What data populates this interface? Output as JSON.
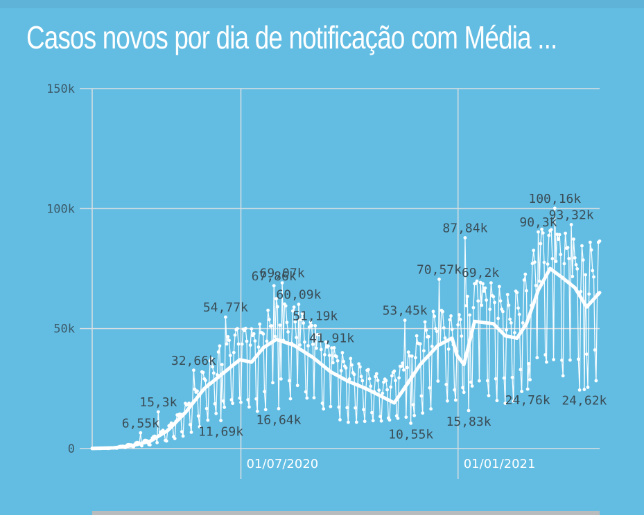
{
  "title": "Casos novos por dia de notificação com Média ...",
  "colors": {
    "background": "#63bde3",
    "line": "#ffffff",
    "grid": "#d9dee1",
    "text": "#3c5a69"
  },
  "chart_data": {
    "type": "line",
    "title": "Casos novos por dia de notificação com Média ...",
    "xlabel": "",
    "ylabel": "",
    "x_range": [
      "2020-02-26",
      "2021-05-01"
    ],
    "ylim": [
      0,
      150000
    ],
    "y_ticks": [
      {
        "value": 0,
        "label": "0"
      },
      {
        "value": 50000,
        "label": "50k"
      },
      {
        "value": 100000,
        "label": "100k"
      },
      {
        "value": 150000,
        "label": "150k"
      }
    ],
    "x_ticks": [
      {
        "date": "2020-07-01",
        "label": "01/07/2020"
      },
      {
        "date": "2021-01-01",
        "label": "01/01/2021"
      }
    ],
    "grid": true,
    "legend": "none",
    "series": [],
    "daily_cases_approx": [
      [
        "2020-02-26",
        0
      ],
      [
        "2020-03-15",
        200
      ],
      [
        "2020-03-31",
        1500
      ],
      [
        "2020-04-15",
        3000
      ],
      [
        "2020-04-30",
        7000
      ],
      [
        "2020-05-15",
        14000
      ],
      [
        "2020-05-31",
        25000
      ],
      [
        "2020-06-15",
        33000
      ],
      [
        "2020-06-30",
        40000
      ],
      [
        "2020-07-15",
        38000
      ],
      [
        "2020-07-31",
        46000
      ],
      [
        "2020-08-15",
        44000
      ],
      [
        "2020-08-31",
        40000
      ],
      [
        "2020-09-15",
        33000
      ],
      [
        "2020-09-30",
        28000
      ],
      [
        "2020-10-15",
        25000
      ],
      [
        "2020-10-31",
        22000
      ],
      [
        "2020-11-15",
        28000
      ],
      [
        "2020-11-30",
        37000
      ],
      [
        "2020-12-15",
        44000
      ],
      [
        "2020-12-31",
        40000
      ],
      [
        "2021-01-15",
        55000
      ],
      [
        "2021-01-31",
        52000
      ],
      [
        "2021-02-15",
        46000
      ],
      [
        "2021-02-28",
        55000
      ],
      [
        "2021-03-15",
        72000
      ],
      [
        "2021-03-31",
        70000
      ],
      [
        "2021-04-15",
        62000
      ],
      [
        "2021-05-01",
        65000
      ]
    ],
    "moving_average_approx": [
      [
        "2020-02-26",
        100
      ],
      [
        "2020-03-15",
        300
      ],
      [
        "2020-03-31",
        1200
      ],
      [
        "2020-04-15",
        3000
      ],
      [
        "2020-04-30",
        7500
      ],
      [
        "2020-05-15",
        15000
      ],
      [
        "2020-05-31",
        25000
      ],
      [
        "2020-06-15",
        31000
      ],
      [
        "2020-06-30",
        37000
      ],
      [
        "2020-07-10",
        36000
      ],
      [
        "2020-07-20",
        42000
      ],
      [
        "2020-07-31",
        45500
      ],
      [
        "2020-08-15",
        43000
      ],
      [
        "2020-08-31",
        38000
      ],
      [
        "2020-09-15",
        32000
      ],
      [
        "2020-09-30",
        28000
      ],
      [
        "2020-10-15",
        25000
      ],
      [
        "2020-10-31",
        21000
      ],
      [
        "2020-11-08",
        19000
      ],
      [
        "2020-11-15",
        24000
      ],
      [
        "2020-11-30",
        35000
      ],
      [
        "2020-12-15",
        43000
      ],
      [
        "2020-12-27",
        46000
      ],
      [
        "2020-12-31",
        39000
      ],
      [
        "2021-01-06",
        35000
      ],
      [
        "2021-01-15",
        53000
      ],
      [
        "2021-01-31",
        52000
      ],
      [
        "2021-02-10",
        47000
      ],
      [
        "2021-02-20",
        46000
      ],
      [
        "2021-02-28",
        52000
      ],
      [
        "2021-03-10",
        66000
      ],
      [
        "2021-03-20",
        75000
      ],
      [
        "2021-03-31",
        71000
      ],
      [
        "2021-04-10",
        67000
      ],
      [
        "2021-04-20",
        59000
      ],
      [
        "2021-05-01",
        65000
      ]
    ],
    "annotations": [
      {
        "label": "6,55k",
        "date": "2020-04-07",
        "value": 6550
      },
      {
        "label": "15,3k",
        "date": "2020-04-22",
        "value": 15300
      },
      {
        "label": "32,66k",
        "date": "2020-05-22",
        "value": 32660
      },
      {
        "label": "11,69k",
        "date": "2020-06-14",
        "value": 11690
      },
      {
        "label": "54,77k",
        "date": "2020-06-18",
        "value": 54770
      },
      {
        "label": "67,86k",
        "date": "2020-07-29",
        "value": 67860
      },
      {
        "label": "16,64k",
        "date": "2020-08-02",
        "value": 16640
      },
      {
        "label": "69,07k",
        "date": "2020-08-05",
        "value": 69070
      },
      {
        "label": "60,09k",
        "date": "2020-08-19",
        "value": 60090
      },
      {
        "label": "51,19k",
        "date": "2020-09-02",
        "value": 51190
      },
      {
        "label": "41,91k",
        "date": "2020-09-16",
        "value": 41910
      },
      {
        "label": "53,45k",
        "date": "2020-11-17",
        "value": 53450
      },
      {
        "label": "10,55k",
        "date": "2020-11-22",
        "value": 10550
      },
      {
        "label": "70,57k",
        "date": "2020-12-16",
        "value": 70570
      },
      {
        "label": "87,84k",
        "date": "2021-01-07",
        "value": 87840
      },
      {
        "label": "15,83k",
        "date": "2021-01-10",
        "value": 15830
      },
      {
        "label": "69,2k",
        "date": "2021-01-20",
        "value": 69200
      },
      {
        "label": "90,3k",
        "date": "2021-03-10",
        "value": 90300
      },
      {
        "label": "24,76k",
        "date": "2021-03-01",
        "value": 24760
      },
      {
        "label": "100,16k",
        "date": "2021-03-24",
        "value": 100160
      },
      {
        "label": "93,32k",
        "date": "2021-04-07",
        "value": 93320
      },
      {
        "label": "24,62k",
        "date": "2021-04-18",
        "value": 24620
      }
    ]
  }
}
